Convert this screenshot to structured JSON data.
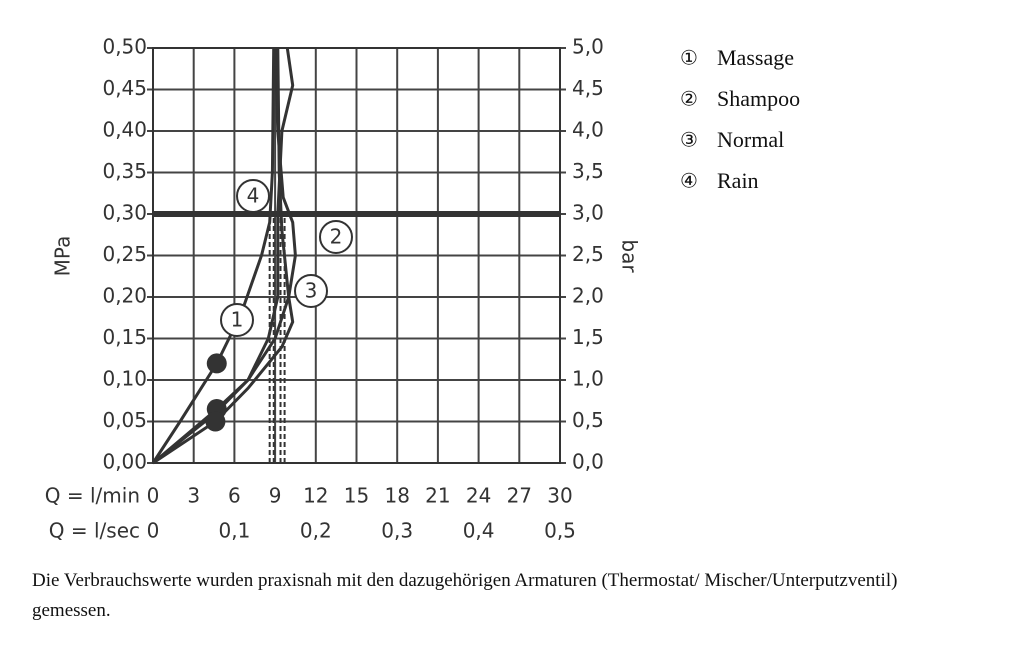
{
  "chart_data": {
    "type": "line",
    "y_label": "MPa",
    "y2_label": "bar",
    "x_label": "Q = l/min",
    "x2_label": "Q = l/sec",
    "xlim": [
      0,
      30
    ],
    "xticks": [
      0,
      3,
      6,
      9,
      12,
      15,
      18,
      21,
      24,
      27,
      30
    ],
    "x2lim": [
      0,
      0.5
    ],
    "x2ticks": [
      0,
      {
        "value": 0.1,
        "label": "0,1"
      },
      {
        "value": 0.2,
        "label": "0,2"
      },
      {
        "value": 0.3,
        "label": "0,3"
      },
      {
        "value": 0.4,
        "label": "0,4"
      },
      {
        "value": 0.5,
        "label": "0,5"
      }
    ],
    "ylim": [
      0,
      0.5
    ],
    "yticks": [
      {
        "value": 0,
        "label": "0,00"
      },
      {
        "value": 0.05,
        "label": "0,05"
      },
      {
        "value": 0.1,
        "label": "0,10"
      },
      {
        "value": 0.15,
        "label": "0,15"
      },
      {
        "value": 0.2,
        "label": "0,20"
      },
      {
        "value": 0.25,
        "label": "0,25"
      },
      {
        "value": 0.3,
        "label": "0,30"
      },
      {
        "value": 0.35,
        "label": "0,35"
      },
      {
        "value": 0.4,
        "label": "0,40"
      },
      {
        "value": 0.45,
        "label": "0,45"
      },
      {
        "value": 0.5,
        "label": "0,50"
      }
    ],
    "y2lim": [
      0,
      5
    ],
    "y2ticks": [
      {
        "value": 0,
        "label": "0,0"
      },
      {
        "value": 0.5,
        "label": "0,5"
      },
      {
        "value": 1,
        "label": "1,0"
      },
      {
        "value": 1.5,
        "label": "1,5"
      },
      {
        "value": 2,
        "label": "2,0"
      },
      {
        "value": 2.5,
        "label": "2,5"
      },
      {
        "value": 3,
        "label": "3,0"
      },
      {
        "value": 3.5,
        "label": "3,5"
      },
      {
        "value": 4,
        "label": "4,0"
      },
      {
        "value": 4.5,
        "label": "4,5"
      },
      {
        "value": 5,
        "label": "5,0"
      }
    ],
    "grid": true,
    "hline": 0.3,
    "vlines": [
      8.6,
      8.9,
      9.4,
      9.7
    ],
    "series": [
      {
        "name": "Massage",
        "symbol": "①",
        "number": "1",
        "color": "#333333",
        "x": [
          0,
          2,
          4.7,
          6.5,
          8,
          8.6,
          8.8,
          8.9
        ],
        "values": [
          0,
          0.05,
          0.12,
          0.18,
          0.25,
          0.29,
          0.35,
          0.5
        ]
      },
      {
        "name": "Shampoo",
        "symbol": "②",
        "number": "2",
        "color": "#333333",
        "x": [
          0,
          4.6,
          7,
          9,
          10,
          10.5,
          10.3,
          9.6,
          9.2,
          9.0
        ],
        "values": [
          0,
          0.06,
          0.1,
          0.15,
          0.2,
          0.25,
          0.29,
          0.32,
          0.4,
          0.5
        ]
      },
      {
        "name": "Normal",
        "symbol": "③",
        "number": "3",
        "color": "#333333",
        "x": [
          0,
          4.6,
          7,
          9.5,
          10.3,
          10,
          9.5,
          9.3,
          9.2
        ],
        "values": [
          0,
          0.05,
          0.09,
          0.14,
          0.17,
          0.2,
          0.28,
          0.35,
          0.5
        ]
      },
      {
        "name": "Rain",
        "symbol": "④",
        "number": "4",
        "color": "#333333",
        "x": [
          0,
          4.7,
          7,
          8.5,
          9.2,
          9.2,
          9.5,
          10.3,
          9.9
        ],
        "values": [
          0,
          0.065,
          0.1,
          0.15,
          0.2,
          0.3,
          0.4,
          0.455,
          0.5
        ]
      }
    ],
    "markers": [
      {
        "x": 4.7,
        "y": 0.12
      },
      {
        "x": 4.7,
        "y": 0.065
      },
      {
        "x": 4.6,
        "y": 0.05
      }
    ],
    "note": "Die Verbrauchswerte wurden praxisnah mit den dazugehörigen Armaturen (Thermostat/ Mischer/Unterputzventil) gemessen."
  }
}
